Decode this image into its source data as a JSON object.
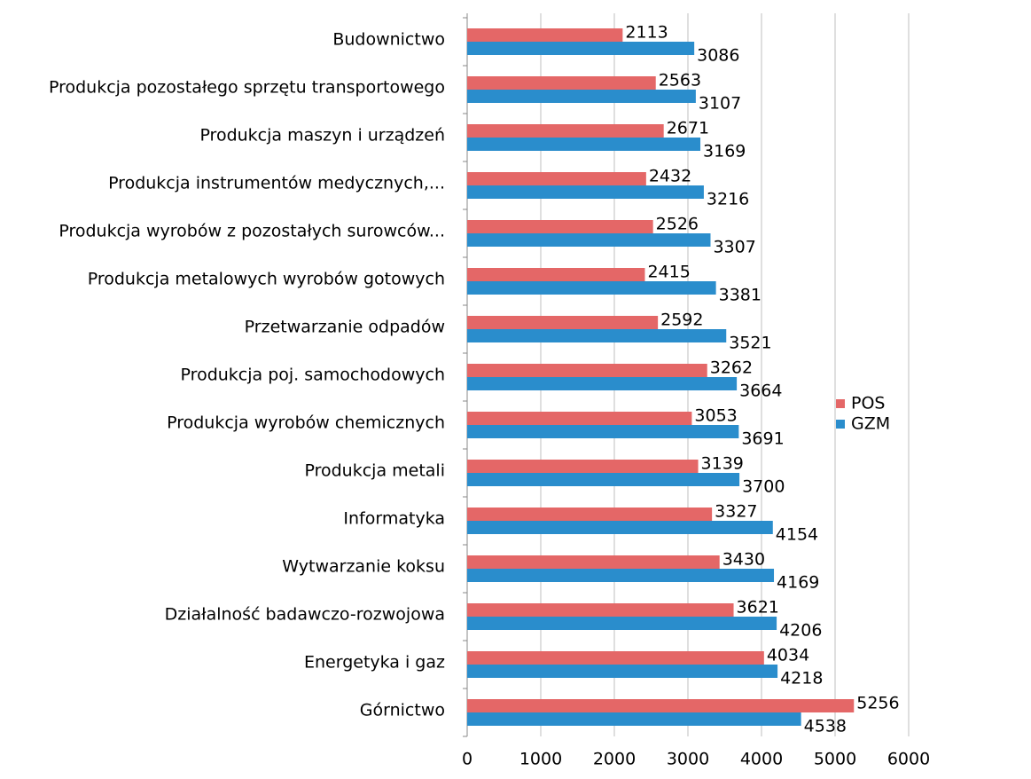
{
  "chart_data": {
    "type": "bar",
    "orientation": "horizontal",
    "categories": [
      "Budownictwo",
      "Produkcja pozostałego sprzętu transportowego",
      "Produkcja maszyn i urządzeń",
      "Produkcja instrumentów medycznych,...",
      "Produkcja wyrobów z pozostałych surowców...",
      "Produkcja metalowych wyrobów gotowych",
      "Przetwarzanie odpadów",
      "Produkcja poj. samochodowych",
      "Produkcja wyrobów chemicznych",
      "Produkcja metali",
      "Informatyka",
      "Wytwarzanie koksu",
      "Działalność badawczo-rozwojowa",
      "Energetyka i gaz",
      "Górnictwo"
    ],
    "series": [
      {
        "name": "POS",
        "color": "#e46767",
        "values": [
          2113,
          2563,
          2671,
          2432,
          2526,
          2415,
          2592,
          3262,
          3053,
          3139,
          3327,
          3430,
          3621,
          4034,
          5256
        ]
      },
      {
        "name": "GZM",
        "color": "#2a8dcc",
        "values": [
          3086,
          3107,
          3169,
          3216,
          3307,
          3381,
          3521,
          3664,
          3691,
          3700,
          4154,
          4169,
          4206,
          4218,
          4538
        ]
      }
    ],
    "xlim": [
      0,
      6000
    ],
    "xticks": [
      0,
      1000,
      2000,
      3000,
      4000,
      5000,
      6000
    ],
    "grid": true,
    "legend": "right"
  }
}
